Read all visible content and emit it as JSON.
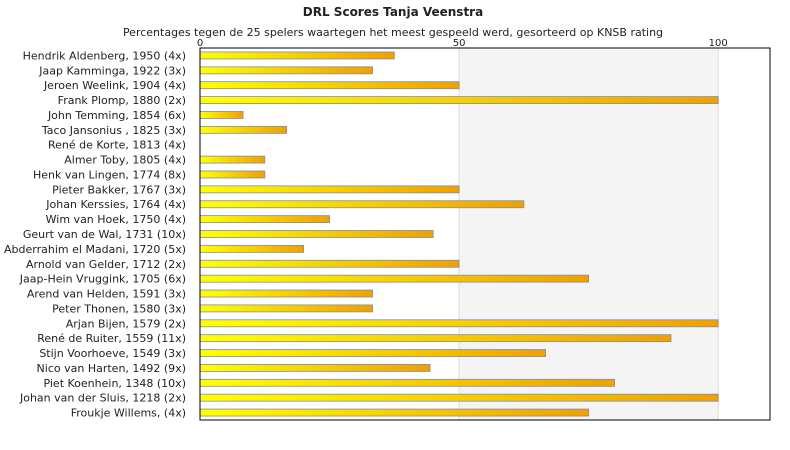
{
  "chart_data": {
    "type": "bar",
    "orientation": "horizontal",
    "title": "DRL Scores Tanja Veenstra",
    "subtitle": "Percentages tegen de 25 spelers waartegen het meest gespeeld werd, gesorteerd op KNSB rating",
    "categories": [
      "Hendrik Aldenberg, 1950 (4x)",
      "Jaap Kamminga, 1922 (3x)",
      "Jeroen Weelink, 1904 (4x)",
      "Frank Plomp, 1880 (2x)",
      "John Temming, 1854 (6x)",
      "Taco Jansonius , 1825 (3x)",
      "René de Korte, 1813 (4x)",
      "Almer Toby, 1805 (4x)",
      "Henk van Lingen, 1774 (8x)",
      "Pieter Bakker, 1767 (3x)",
      "Johan Kerssies, 1764 (4x)",
      "Wim van Hoek, 1750 (4x)",
      "Geurt van de Wal, 1731 (10x)",
      "Abderrahim el Madani, 1720 (5x)",
      "Arnold van Gelder, 1712 (2x)",
      "Jaap-Hein Vruggink, 1705 (6x)",
      "Arend van Helden, 1591 (3x)",
      "Peter Thonen, 1580 (3x)",
      "Arjan Bijen, 1579 (2x)",
      "René de Ruiter, 1559 (11x)",
      "Stijn Voorhoeve, 1549 (3x)",
      "Nico van Harten, 1492 (9x)",
      "Piet Koenhein, 1348 (10x)",
      "Johan van der Sluis, 1218 (2x)",
      "Froukje Willems,  (4x)"
    ],
    "values": [
      37.5,
      33.3,
      50,
      100,
      8.3,
      16.7,
      0,
      12.5,
      12.5,
      50,
      62.5,
      25,
      45,
      20,
      50,
      75,
      33.3,
      33.3,
      100,
      90.9,
      66.7,
      44.4,
      80,
      100,
      75
    ],
    "xlim": [
      0,
      110
    ],
    "xticks": [
      "0",
      "50",
      "100"
    ],
    "tick_values": [
      0,
      50,
      100
    ],
    "grid": true,
    "legend": "none",
    "colors": {
      "bar_start": "#ffff00",
      "bar_end": "#f0a000",
      "bar_stroke": "#7a8fb0",
      "band_light": "#ffffff",
      "band_shade": "#f4f4f4",
      "grid": "#dddddd",
      "axis": "#000000"
    }
  }
}
